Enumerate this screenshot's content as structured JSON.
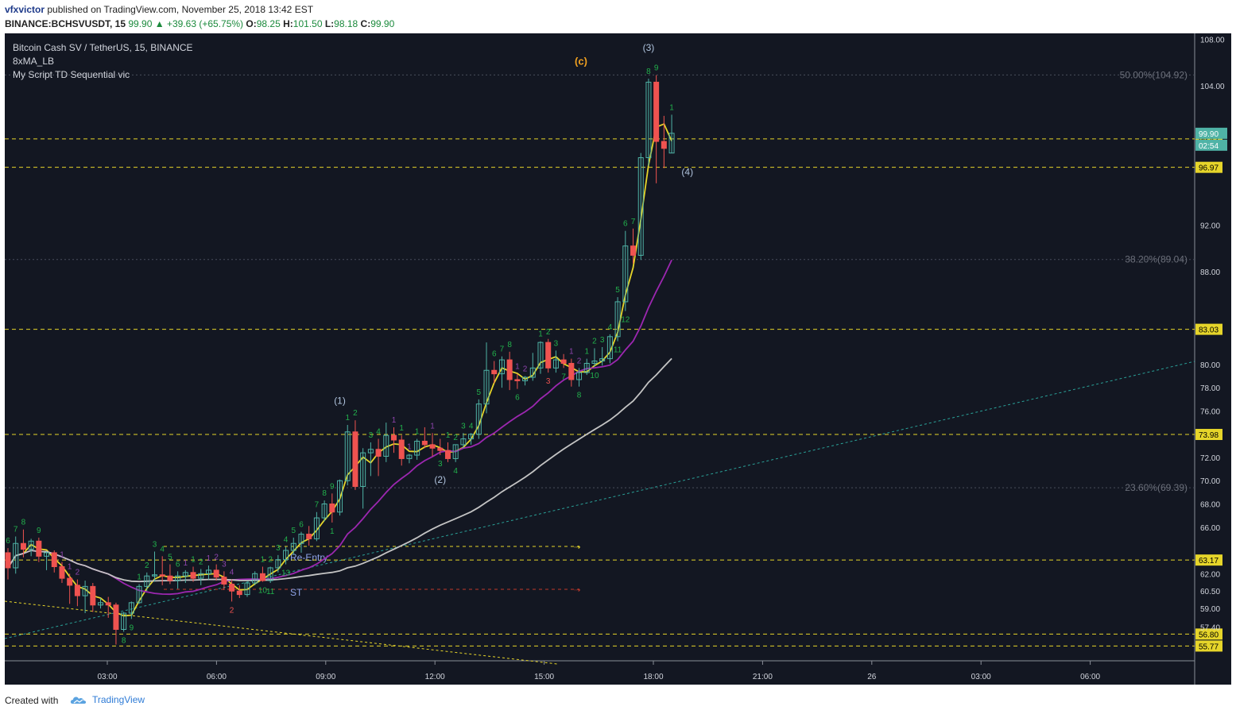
{
  "header": {
    "user": "vfxvictor",
    "published": "published on TradingView.com, November 25, 2018 13:42 EST",
    "symbol_line": "BINANCE:BCHSVUSDT, 15",
    "last": "99.90",
    "change": "+39.63 (+65.75%)",
    "o_label": "O:",
    "o": "98.25",
    "h_label": "H:",
    "h": "101.50",
    "l_label": "L:",
    "l": "98.18",
    "c_label": "C:",
    "c": "99.90"
  },
  "legend": {
    "title": "Bitcoin Cash SV / TetherUS, 15, BINANCE",
    "indicator1": "8xMA_LB",
    "indicator2": "My Script TD Sequential vic"
  },
  "footer": {
    "created_with": "Created with",
    "brand": "TradingView"
  },
  "colors": {
    "background": "#131722",
    "up": "#4fb3a6",
    "down": "#ef5350",
    "ma_fast": "#e6d52a",
    "ma_mid": "#9c27b0",
    "ma_slow": "#c4c4c4",
    "levels": "#e6d52a",
    "td_green": "#22b14c",
    "td_purple": "#8e44ad",
    "wave": "#b0c4de",
    "wave_c": "#f0a020"
  },
  "chart_data": {
    "type": "candlestick",
    "ylim": [
      54.5,
      108.5
    ],
    "y_ticks": [
      "108.00",
      "104.00",
      "99.42",
      "96.97",
      "92.00",
      "88.00",
      "83.03",
      "80.00",
      "78.00",
      "76.00",
      "73.98",
      "72.00",
      "70.00",
      "68.00",
      "66.00",
      "63.17",
      "62.00",
      "60.50",
      "59.00",
      "57.40",
      "56.80",
      "55.77"
    ],
    "x_ticks": [
      "03:00",
      "06:00",
      "09:00",
      "12:00",
      "15:00",
      "18:00",
      "21:00",
      "26",
      "03:00",
      "06:00"
    ],
    "price_tag": {
      "value": "99.90",
      "countdown": "02:54"
    },
    "horizontal_levels": [
      {
        "label": "99.42",
        "value": 99.42
      },
      {
        "label": "96.97",
        "value": 96.97
      },
      {
        "label": "83.03",
        "value": 83.03
      },
      {
        "label": "73.98",
        "value": 73.98
      },
      {
        "label": "63.17",
        "value": 63.17
      },
      {
        "label": "56.80",
        "value": 56.8
      },
      {
        "label": "55.77",
        "value": 55.77
      }
    ],
    "fib_levels": [
      {
        "label": "50.00%(104.92)",
        "value": 104.92
      },
      {
        "label": "38.20%(89.04)",
        "value": 89.04
      },
      {
        "label": "23.60%(69.39)",
        "value": 69.39
      }
    ],
    "wave_labels": [
      "(1)",
      "(2)",
      "(3)",
      "(4)",
      "(c)"
    ],
    "text_annotations": [
      "Re-Entry",
      "ST"
    ],
    "candles": [
      [
        63.8,
        64.2,
        61.5,
        62.5
      ],
      [
        62.5,
        65.2,
        62.0,
        64.6
      ],
      [
        64.6,
        65.8,
        63.4,
        64.1
      ],
      [
        64.1,
        65.0,
        63.5,
        64.8
      ],
      [
        64.8,
        65.1,
        63.0,
        63.5
      ],
      [
        63.5,
        63.9,
        62.3,
        63.8
      ],
      [
        63.8,
        64.0,
        62.1,
        62.6
      ],
      [
        62.6,
        63.0,
        61.2,
        61.6
      ],
      [
        61.6,
        62.0,
        59.4,
        61.0
      ],
      [
        61.0,
        61.5,
        59.2,
        60.1
      ],
      [
        60.1,
        61.4,
        58.6,
        60.9
      ],
      [
        60.9,
        61.2,
        58.7,
        59.3
      ],
      [
        59.3,
        59.9,
        59.0,
        59.5
      ],
      [
        59.5,
        60.0,
        58.2,
        59.3
      ],
      [
        59.3,
        59.5,
        55.9,
        57.2
      ],
      [
        57.2,
        58.7,
        57.0,
        58.6
      ],
      [
        58.6,
        59.6,
        58.1,
        59.5
      ],
      [
        59.5,
        61.1,
        59.4,
        60.9
      ],
      [
        60.9,
        62.1,
        60.5,
        61.8
      ],
      [
        61.8,
        63.9,
        61.3,
        61.9
      ],
      [
        61.9,
        63.5,
        61.0,
        61.8
      ],
      [
        61.8,
        62.8,
        61.1,
        61.4
      ],
      [
        61.4,
        62.2,
        60.7,
        61.8
      ],
      [
        61.8,
        62.3,
        61.2,
        62.1
      ],
      [
        62.1,
        62.6,
        61.3,
        61.6
      ],
      [
        61.6,
        62.4,
        61.0,
        62.0
      ],
      [
        62.0,
        62.7,
        61.5,
        62.3
      ],
      [
        62.3,
        62.8,
        61.4,
        61.7
      ],
      [
        61.7,
        62.2,
        60.6,
        61.1
      ],
      [
        61.1,
        61.5,
        59.6,
        60.5
      ],
      [
        60.5,
        61.0,
        59.9,
        60.2
      ],
      [
        60.2,
        61.3,
        60.0,
        61.2
      ],
      [
        61.2,
        62.2,
        61.0,
        62.0
      ],
      [
        62.0,
        62.6,
        61.3,
        61.4
      ],
      [
        61.4,
        62.6,
        61.2,
        62.5
      ],
      [
        62.5,
        63.6,
        62.1,
        63.2
      ],
      [
        63.2,
        64.3,
        62.8,
        64.0
      ],
      [
        64.0,
        65.1,
        63.6,
        64.6
      ],
      [
        64.6,
        65.6,
        63.8,
        65.4
      ],
      [
        65.4,
        66.1,
        64.4,
        65.0
      ],
      [
        65.0,
        67.3,
        64.8,
        66.8
      ],
      [
        66.8,
        68.3,
        66.5,
        68.0
      ],
      [
        68.0,
        68.9,
        66.4,
        67.3
      ],
      [
        67.3,
        70.1,
        67.0,
        70.0
      ],
      [
        70.0,
        74.8,
        69.6,
        74.2
      ],
      [
        74.2,
        75.2,
        69.2,
        69.5
      ],
      [
        69.5,
        72.8,
        67.6,
        72.4
      ],
      [
        72.4,
        73.3,
        70.4,
        72.7
      ],
      [
        72.7,
        73.6,
        70.4,
        72.1
      ],
      [
        72.1,
        75.0,
        71.6,
        73.9
      ],
      [
        73.9,
        74.6,
        72.4,
        73.5
      ],
      [
        73.5,
        73.9,
        71.3,
        71.9
      ],
      [
        71.9,
        72.3,
        71.5,
        72.2
      ],
      [
        72.2,
        73.6,
        71.8,
        73.4
      ],
      [
        73.4,
        74.6,
        72.8,
        73.1
      ],
      [
        73.1,
        74.1,
        72.1,
        72.8
      ],
      [
        72.8,
        73.6,
        72.2,
        72.6
      ],
      [
        72.6,
        73.3,
        71.6,
        71.9
      ],
      [
        71.9,
        73.1,
        71.6,
        73.1
      ],
      [
        73.1,
        74.1,
        72.8,
        73.6
      ],
      [
        73.6,
        74.1,
        73.1,
        74.0
      ],
      [
        74.0,
        77.0,
        73.6,
        76.6
      ],
      [
        76.6,
        81.9,
        75.8,
        79.5
      ],
      [
        79.5,
        80.3,
        78.4,
        79.2
      ],
      [
        79.2,
        80.7,
        78.0,
        80.4
      ],
      [
        80.4,
        81.1,
        77.8,
        78.7
      ],
      [
        78.7,
        79.2,
        77.9,
        78.6
      ],
      [
        78.6,
        79.0,
        78.2,
        78.9
      ],
      [
        78.9,
        81.0,
        78.6,
        79.7
      ],
      [
        79.7,
        82.0,
        79.2,
        81.9
      ],
      [
        81.9,
        82.2,
        79.3,
        79.7
      ],
      [
        79.7,
        81.2,
        79.3,
        80.4
      ],
      [
        80.4,
        80.9,
        79.7,
        80.1
      ],
      [
        80.1,
        80.5,
        78.1,
        78.7
      ],
      [
        78.7,
        79.7,
        78.1,
        79.3
      ],
      [
        79.3,
        80.5,
        79.1,
        80.1
      ],
      [
        80.1,
        81.4,
        79.8,
        80.3
      ],
      [
        80.3,
        81.5,
        79.9,
        80.5
      ],
      [
        80.5,
        82.6,
        80.1,
        82.4
      ],
      [
        82.4,
        85.8,
        82.0,
        85.4
      ],
      [
        85.4,
        91.5,
        84.6,
        90.2
      ],
      [
        90.2,
        91.7,
        88.7,
        89.4
      ],
      [
        89.4,
        98.2,
        89.0,
        97.8
      ],
      [
        97.8,
        104.6,
        97.1,
        104.3
      ],
      [
        104.3,
        104.9,
        95.6,
        99.2
      ],
      [
        99.2,
        101.4,
        96.9,
        98.6
      ],
      [
        98.2,
        101.5,
        98.2,
        99.9
      ]
    ],
    "td_counts": [
      {
        "i": 0,
        "label": "6",
        "pos": "above",
        "color": "td_green"
      },
      {
        "i": 1,
        "label": "7",
        "pos": "above",
        "color": "td_green"
      },
      {
        "i": 2,
        "label": "8",
        "pos": "above",
        "color": "td_green"
      },
      {
        "i": 4,
        "label": "9",
        "pos": "above",
        "color": "td_green"
      },
      {
        "i": 7,
        "label": "1",
        "pos": "above",
        "color": "td_purple"
      },
      {
        "i": 8,
        "label": "1",
        "pos": "above",
        "color": "td_purple"
      },
      {
        "i": 9,
        "label": "2",
        "pos": "above",
        "color": "td_purple"
      },
      {
        "i": 17,
        "label": "1",
        "pos": "above",
        "color": "td_green"
      },
      {
        "i": 18,
        "label": "2",
        "pos": "above",
        "color": "td_green"
      },
      {
        "i": 19,
        "label": "3",
        "pos": "above",
        "color": "td_green"
      },
      {
        "i": 20,
        "label": "4",
        "pos": "above",
        "color": "td_green"
      },
      {
        "i": 21,
        "label": "5",
        "pos": "above",
        "color": "td_green"
      },
      {
        "i": 22,
        "label": "6",
        "pos": "above",
        "color": "td_green"
      },
      {
        "i": 23,
        "label": "1",
        "pos": "above",
        "color": "td_purple"
      },
      {
        "i": 24,
        "label": "1",
        "pos": "above",
        "color": "td_green"
      },
      {
        "i": 25,
        "label": "2",
        "pos": "above",
        "color": "td_green"
      },
      {
        "i": 26,
        "label": "1",
        "pos": "above",
        "color": "td_purple"
      },
      {
        "i": 27,
        "label": "2",
        "pos": "above",
        "color": "td_purple"
      },
      {
        "i": 28,
        "label": "3",
        "pos": "above",
        "color": "td_purple"
      },
      {
        "i": 29,
        "label": "4",
        "pos": "above",
        "color": "td_purple"
      },
      {
        "i": 33,
        "label": "1",
        "pos": "above",
        "color": "td_green"
      },
      {
        "i": 34,
        "label": "2",
        "pos": "above",
        "color": "td_green"
      },
      {
        "i": 35,
        "label": "3",
        "pos": "above",
        "color": "td_green"
      },
      {
        "i": 36,
        "label": "4",
        "pos": "above",
        "color": "td_green"
      },
      {
        "i": 37,
        "label": "5",
        "pos": "above",
        "color": "td_green"
      },
      {
        "i": 38,
        "label": "6",
        "pos": "above",
        "color": "td_green"
      },
      {
        "i": 40,
        "label": "7",
        "pos": "above",
        "color": "td_green"
      },
      {
        "i": 41,
        "label": "8",
        "pos": "above",
        "color": "td_green"
      },
      {
        "i": 42,
        "label": "9",
        "pos": "above",
        "color": "td_green"
      },
      {
        "i": 44,
        "label": "1",
        "pos": "above",
        "color": "td_green"
      },
      {
        "i": 45,
        "label": "2",
        "pos": "above",
        "color": "td_green"
      },
      {
        "i": 47,
        "label": "3",
        "pos": "above",
        "color": "td_green"
      },
      {
        "i": 48,
        "label": "4",
        "pos": "above",
        "color": "td_green"
      },
      {
        "i": 50,
        "label": "1",
        "pos": "above",
        "color": "td_purple"
      },
      {
        "i": 51,
        "label": "1",
        "pos": "above",
        "color": "td_green"
      },
      {
        "i": 52,
        "label": "1",
        "pos": "above",
        "color": "td_purple"
      },
      {
        "i": 53,
        "label": "1",
        "pos": "above",
        "color": "td_green"
      },
      {
        "i": 55,
        "label": "1",
        "pos": "above",
        "color": "td_purple"
      },
      {
        "i": 57,
        "label": "1",
        "pos": "above",
        "color": "td_green"
      },
      {
        "i": 58,
        "label": "2",
        "pos": "above",
        "color": "td_green"
      },
      {
        "i": 59,
        "label": "3",
        "pos": "above",
        "color": "td_green"
      },
      {
        "i": 60,
        "label": "4",
        "pos": "above",
        "color": "td_green"
      },
      {
        "i": 61,
        "label": "5",
        "pos": "above",
        "color": "td_green"
      },
      {
        "i": 63,
        "label": "6",
        "pos": "above",
        "color": "td_green"
      },
      {
        "i": 64,
        "label": "7",
        "pos": "above",
        "color": "td_green"
      },
      {
        "i": 65,
        "label": "8",
        "pos": "above",
        "color": "td_green"
      },
      {
        "i": 66,
        "label": "1",
        "pos": "above",
        "color": "td_purple"
      },
      {
        "i": 67,
        "label": "2",
        "pos": "above",
        "color": "td_purple"
      },
      {
        "i": 69,
        "label": "1",
        "pos": "above",
        "color": "td_green"
      },
      {
        "i": 70,
        "label": "2",
        "pos": "above",
        "color": "td_green"
      },
      {
        "i": 71,
        "label": "3",
        "pos": "above",
        "color": "td_green"
      },
      {
        "i": 73,
        "label": "1",
        "pos": "above",
        "color": "td_purple"
      },
      {
        "i": 74,
        "label": "2",
        "pos": "above",
        "color": "td_purple"
      },
      {
        "i": 75,
        "label": "1",
        "pos": "above",
        "color": "td_green"
      },
      {
        "i": 76,
        "label": "2",
        "pos": "above",
        "color": "td_green"
      },
      {
        "i": 77,
        "label": "3",
        "pos": "above",
        "color": "td_green"
      },
      {
        "i": 78,
        "label": "4",
        "pos": "above",
        "color": "td_green"
      },
      {
        "i": 79,
        "label": "5",
        "pos": "above",
        "color": "td_green"
      },
      {
        "i": 80,
        "label": "6",
        "pos": "above",
        "color": "td_green"
      },
      {
        "i": 81,
        "label": "7",
        "pos": "above",
        "color": "td_green"
      },
      {
        "i": 83,
        "label": "8",
        "pos": "above",
        "color": "td_green"
      },
      {
        "i": 84,
        "label": "9",
        "pos": "above",
        "color": "td_green"
      },
      {
        "i": 86,
        "label": "1",
        "pos": "above",
        "color": "td_green"
      },
      {
        "i": 15,
        "label": "8",
        "pos": "below",
        "color": "td_green"
      },
      {
        "i": 16,
        "label": "9",
        "pos": "below",
        "color": "td_green"
      },
      {
        "i": 29,
        "label": "2",
        "pos": "below",
        "color": "down"
      },
      {
        "i": 33,
        "label": "10",
        "pos": "below",
        "color": "td_green"
      },
      {
        "i": 34,
        "label": "11",
        "pos": "below",
        "color": "td_green"
      },
      {
        "i": 36,
        "label": "13",
        "pos": "below",
        "color": "td_green"
      },
      {
        "i": 42,
        "label": "1",
        "pos": "below",
        "color": "td_green"
      },
      {
        "i": 56,
        "label": "3",
        "pos": "below",
        "color": "td_green"
      },
      {
        "i": 58,
        "label": "4",
        "pos": "below",
        "color": "td_green"
      },
      {
        "i": 66,
        "label": "6",
        "pos": "below",
        "color": "td_green"
      },
      {
        "i": 70,
        "label": "3",
        "pos": "below",
        "color": "down"
      },
      {
        "i": 72,
        "label": "7",
        "pos": "below",
        "color": "td_green"
      },
      {
        "i": 74,
        "label": "8",
        "pos": "below",
        "color": "td_green"
      },
      {
        "i": 76,
        "label": "10",
        "pos": "below",
        "color": "td_green"
      },
      {
        "i": 79,
        "label": "11",
        "pos": "below",
        "color": "td_green"
      },
      {
        "i": 80,
        "label": "12",
        "pos": "below",
        "color": "td_green"
      }
    ]
  }
}
